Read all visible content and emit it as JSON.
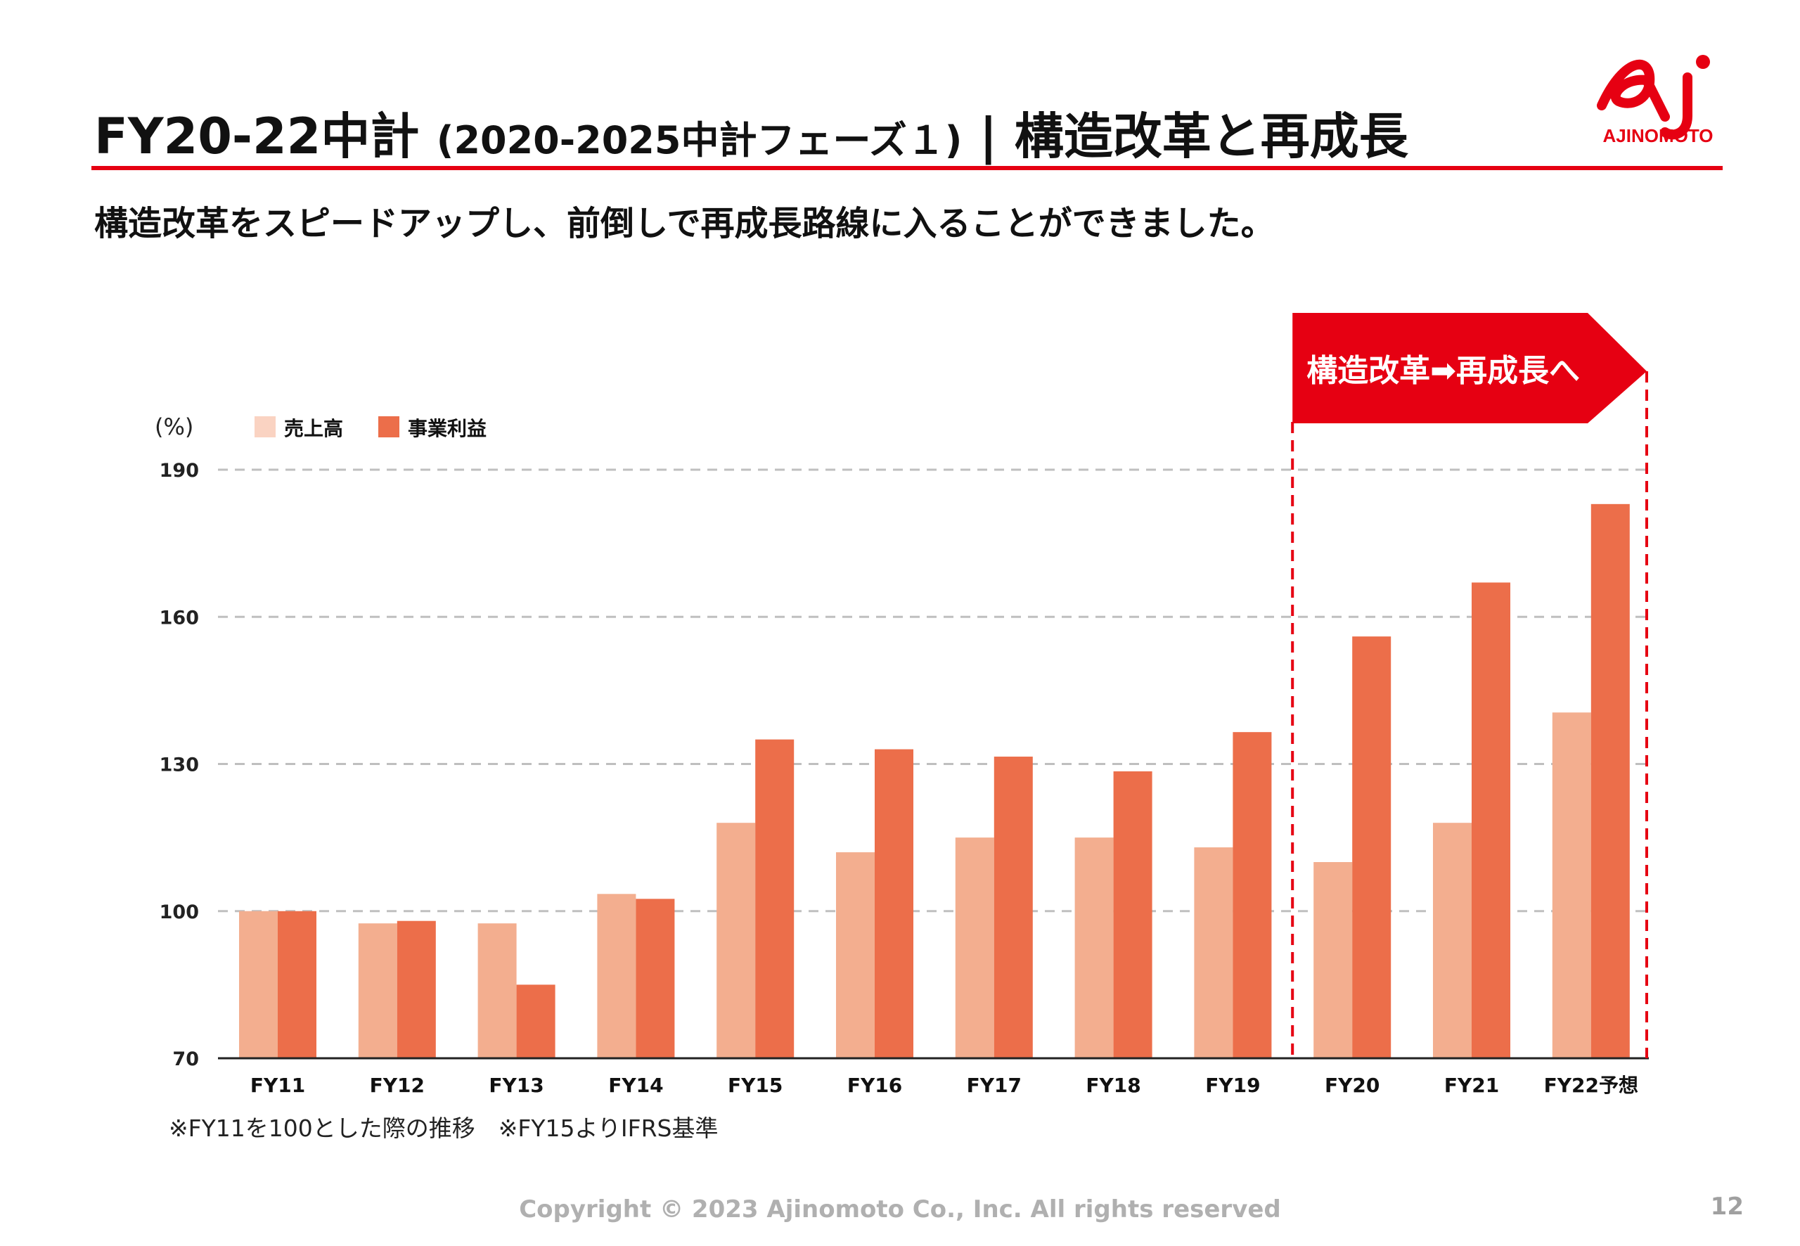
{
  "header": {
    "title_main": "FY20-22中計",
    "title_sub": "(2020-2025中計フェーズ１)",
    "title_sep": "|",
    "title_tail": "構造改革と再成長",
    "logo_text": "AJINOMOTO"
  },
  "lead": "構造改革をスピードアップし、前倒しで再成長路線に入ることができました。",
  "callout": "構造改革➡再成長へ",
  "footnote": "※FY11を100とした際の推移　※FY15よりIFRS基準",
  "footer": {
    "copyright": "Copyright © 2023 Ajinomoto Co., Inc. All rights reserved",
    "page": "12"
  },
  "colors": {
    "accent": "#e60012",
    "sales": "#f3ae8f",
    "profit": "#ec6e4a",
    "legend_sales": "#fad3c2",
    "grid": "#bfbfbf"
  },
  "chart_data": {
    "type": "bar",
    "ylabel": "(%)",
    "ylim": [
      70,
      190
    ],
    "yticks": [
      "190",
      "160",
      "130",
      "100",
      "70"
    ],
    "categories": [
      "FY11",
      "FY12",
      "FY13",
      "FY14",
      "FY15",
      "FY16",
      "FY17",
      "FY18",
      "FY19",
      "FY20",
      "FY21",
      "FY22予想"
    ],
    "series": [
      {
        "name": "売上高",
        "values": [
          100,
          97.5,
          97.5,
          103.5,
          118,
          112,
          115,
          115,
          113,
          110,
          118,
          140.5
        ]
      },
      {
        "name": "事業利益",
        "values": [
          100,
          98,
          85,
          102.5,
          135,
          133,
          131.5,
          128.5,
          136.5,
          156,
          167,
          183
        ]
      }
    ],
    "highlight_range": [
      "FY20",
      "FY22予想"
    ],
    "grid": "dashed"
  }
}
